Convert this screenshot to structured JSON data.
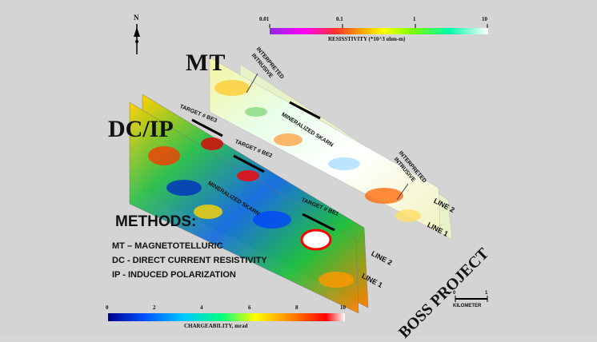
{
  "labels": {
    "mt": "MT",
    "dcip": "DC/IP",
    "north": "N",
    "project": "BOSS PROJECT",
    "interpreted_intrusive_1": "INTERPRETED",
    "interpreted_intrusive_1b": "INTRUSIVE",
    "interpreted_intrusive_2": "INTERPRETED",
    "interpreted_intrusive_2b": "INTRUSIVE",
    "mineralized_skarn_mt": "MINERALIZED SKARN",
    "mineralized_skarn_dc": "MINERALIZED SKARN",
    "target_be3": "TARGET # BE3",
    "target_be2": "TARGET # BE2",
    "target_be1": "TARGET # BE1",
    "mt_line2": "LINE 2",
    "mt_line1": "LINE 1",
    "dc_line2": "LINE 2",
    "dc_line1": "LINE 1"
  },
  "methods": {
    "title": "METHODS:",
    "items": [
      "MT – MAGNETOTELLURIC",
      "DC - DIRECT CURRENT RESISTIVITY",
      "IP - INDUCED POLARIZATION"
    ]
  },
  "resistivity_scale": {
    "ticks": [
      "0.01",
      "0.1",
      "1",
      "10"
    ],
    "title": "RESISSTIVITY (*10^3 ohm-m)",
    "colors": [
      "#8a2be2",
      "#ff00ff",
      "#ff3030",
      "#ffa500",
      "#ffff00",
      "#7fff00",
      "#00ffaa",
      "#ffffff"
    ]
  },
  "chargeability_scale": {
    "ticks": [
      "0",
      "2",
      "4",
      "6",
      "8",
      "10"
    ],
    "title": "CHARGEABILITY, mrad",
    "colors": [
      "#00008b",
      "#0050ff",
      "#00c8ff",
      "#00ff80",
      "#ffff00",
      "#ff8000",
      "#ff0000",
      "#ffffff"
    ]
  },
  "scale_bar": {
    "left": "0",
    "right": "1",
    "unit": "KILOMETER"
  }
}
